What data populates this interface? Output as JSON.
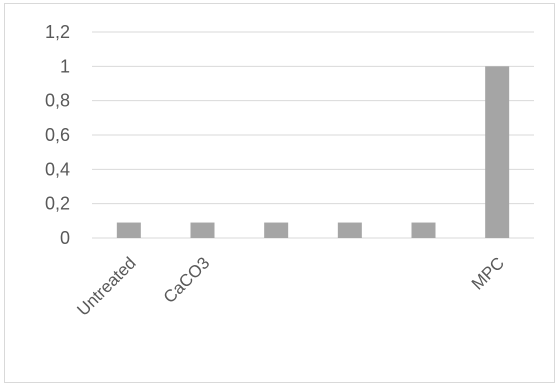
{
  "chart_data": {
    "type": "bar",
    "categories": [
      "Untreated",
      "CaCO3",
      "",
      "",
      "",
      "MPC"
    ],
    "values": [
      0.09,
      0.09,
      0.09,
      0.09,
      0.09,
      1.0
    ],
    "ylim": [
      0,
      1.2
    ],
    "yticks": [
      "0",
      "0,2",
      "0,4",
      "0,6",
      "0,8",
      "1",
      "1,2"
    ],
    "grid": true,
    "legend": "none",
    "title": "",
    "xlabel": "",
    "ylabel": ""
  },
  "colors": {
    "bar": "#a5a5a5",
    "grid": "#d9d9d9",
    "text": "#595959",
    "border": "#d9d9d9"
  }
}
